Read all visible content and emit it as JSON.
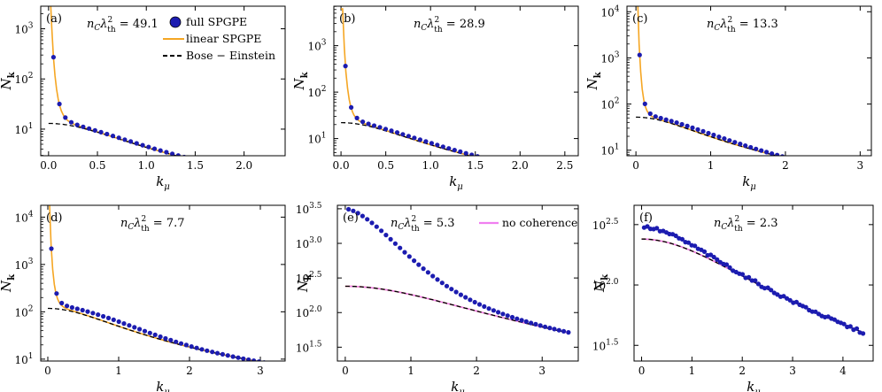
{
  "colors": {
    "full": "#1c1cb0",
    "linear": "#f5a623",
    "be": "#000000",
    "nocoh": "#f07ff0"
  },
  "chart_data": [
    {
      "id": "a",
      "type": "line",
      "panel_label": "(a)",
      "annotation": "n_C λ_th² = 49.1",
      "xlabel": "k_μ",
      "ylabel": "N_k",
      "yscale": "log",
      "xlim": [
        -0.08,
        2.42
      ],
      "ylim_log10": [
        0.47,
        3.45
      ],
      "xticks": [
        "0.0",
        "0.5",
        "1.0",
        "1.5",
        "2.0"
      ],
      "xtick_values": [
        0,
        0.5,
        1,
        1.5,
        2
      ],
      "yticks": [
        "10^1",
        "10^2",
        "10^3"
      ],
      "ytick_exponents": [
        1,
        2,
        3
      ],
      "params": {
        "kmax": 2.3,
        "npts": 38,
        "logA": 1.15,
        "k0": 2.0,
        "B": 13.0,
        "D": 3.3,
        "W": 0.5,
        "dev": 0.02,
        "skipSmallK": false
      },
      "legend": {
        "full": "full SPGPE",
        "linear": "linear SPGPE",
        "be": "Bose − Einstein"
      }
    },
    {
      "id": "b",
      "type": "line",
      "panel_label": "(b)",
      "annotation": "n_C λ_th² = 28.9",
      "xlabel": "k_μ",
      "ylabel": "N_k",
      "yscale": "log",
      "xlim": [
        -0.08,
        2.65
      ],
      "ylim_log10": [
        0.63,
        3.85
      ],
      "xticks": [
        "0.0",
        "0.5",
        "1.0",
        "1.5",
        "2.0",
        "2.5"
      ],
      "xtick_values": [
        0,
        0.5,
        1,
        1.5,
        2,
        2.5
      ],
      "yticks": [
        "10^1",
        "10^2",
        "10^3"
      ],
      "ytick_exponents": [
        1,
        2,
        3
      ],
      "params": {
        "kmax": 2.55,
        "npts": 40,
        "logA": 1.3,
        "k0": 2.1,
        "B": 22.0,
        "D": 3.2,
        "W": 0.5,
        "dev": 0.04,
        "skipSmallK": false
      }
    },
    {
      "id": "c",
      "type": "line",
      "panel_label": "(c)",
      "annotation": "n_C λ_th² = 13.3",
      "xlabel": "k_μ",
      "ylabel": "N_k",
      "yscale": "log",
      "xlim": [
        -0.12,
        3.15
      ],
      "ylim_log10": [
        0.88,
        4.12
      ],
      "xticks": [
        "0",
        "1",
        "2",
        "3"
      ],
      "xtick_values": [
        0,
        1,
        2,
        3
      ],
      "yticks": [
        "10^1",
        "10^2",
        "10^3",
        "10^4"
      ],
      "ytick_exponents": [
        1,
        2,
        3,
        4
      ],
      "params": {
        "kmax": 2.95,
        "npts": 42,
        "logA": 1.65,
        "k0": 2.5,
        "B": 52.0,
        "D": 3.6,
        "W": 0.55,
        "dev": 0.06,
        "skipSmallK": false
      }
    },
    {
      "id": "d",
      "type": "line",
      "panel_label": "(d)",
      "annotation": "n_C λ_th² = 7.7",
      "xlabel": "k_μ",
      "ylabel": "N_k",
      "yscale": "log",
      "xlim": [
        -0.1,
        3.35
      ],
      "ylim_log10": [
        0.96,
        4.25
      ],
      "xticks": [
        "0",
        "1",
        "2",
        "3"
      ],
      "xtick_values": [
        0,
        1,
        2,
        3
      ],
      "yticks": [
        "10^1",
        "10^2",
        "10^3",
        "10^4"
      ],
      "ytick_exponents": [
        1,
        2,
        3,
        4
      ],
      "params": {
        "kmax": 3.2,
        "npts": 44,
        "logA": 2.05,
        "k0": 2.7,
        "B": 118.0,
        "D": 3.2,
        "W": 0.6,
        "dev": 0.1,
        "skipSmallK": false
      }
    },
    {
      "id": "e",
      "type": "line",
      "panel_label": "(e)",
      "annotation": "n_C λ_th² = 5.3",
      "xlabel": "k_μ",
      "ylabel": "N_k",
      "yscale": "log",
      "xlim": [
        -0.12,
        3.55
      ],
      "ylim_log10": [
        1.3,
        3.55
      ],
      "xticks": [
        "0",
        "1",
        "2",
        "3"
      ],
      "xtick_values": [
        0,
        1,
        2,
        3
      ],
      "yticks": [
        "10^1.5",
        "10^2.0",
        "10^2.5",
        "10^3.0",
        "10^3.5"
      ],
      "ytick_exponents": [
        1.5,
        2,
        2.5,
        3,
        3.5
      ],
      "params": {
        "kmax": 3.4,
        "npts": 48,
        "logA": 3.5,
        "k0": 0.35,
        "B": 240.0,
        "D": 2.6,
        "W": 1.25,
        "dev": 0.25,
        "skipSmallK": false
      },
      "legend": {
        "nocoh": "no coherence"
      }
    },
    {
      "id": "f",
      "type": "line",
      "panel_label": "(f)",
      "annotation": "n_C λ_th² = 2.3",
      "xlabel": "k_μ",
      "ylabel": "N_k",
      "yscale": "log",
      "xlim": [
        -0.15,
        4.6
      ],
      "ylim_log10": [
        1.37,
        2.66
      ],
      "xticks": [
        "0",
        "1",
        "2",
        "3",
        "4"
      ],
      "xtick_values": [
        0,
        1,
        2,
        3,
        4
      ],
      "yticks": [
        "10^1.5",
        "10^2.0",
        "10^2.5"
      ],
      "ytick_exponents": [
        1.5,
        2,
        2.5
      ],
      "params": {
        "kmax": 4.4,
        "npts": 70,
        "logA": 2.48,
        "k0": 0.05,
        "B": 240.0,
        "D": 2.2,
        "W": 1.4,
        "dev": 0.07,
        "skipSmallK": false
      }
    }
  ]
}
